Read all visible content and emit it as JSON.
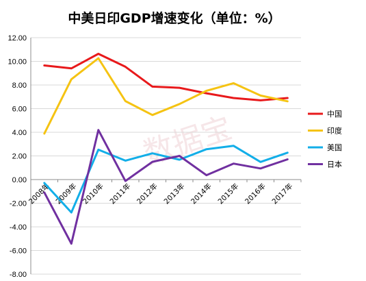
{
  "chart_data": {
    "type": "line",
    "title": "中美日印GDP增速变化（单位：%）",
    "watermark": "数据宝",
    "categories": [
      "2008年",
      "2009年",
      "2010年",
      "2011年",
      "2012年",
      "2013年",
      "2014年",
      "2015年",
      "2016年",
      "2017年"
    ],
    "y_tick_labels": [
      "12.00",
      "10.00",
      "8.00",
      "6.00",
      "4.00",
      "2.00",
      "0.00",
      "-2.00",
      "-4.00",
      "-6.00",
      "-8.00"
    ],
    "ylim": [
      -8,
      12
    ],
    "y_step": 2,
    "grid": true,
    "legend_position": "right",
    "series": [
      {
        "name": "中国",
        "color": "#e8191b",
        "values": [
          9.65,
          9.4,
          10.64,
          9.54,
          7.86,
          7.76,
          7.3,
          6.9,
          6.7,
          6.9
        ]
      },
      {
        "name": "印度",
        "color": "#f5c312",
        "values": [
          3.89,
          8.48,
          10.26,
          6.64,
          5.46,
          6.39,
          7.51,
          8.15,
          7.11,
          6.62
        ]
      },
      {
        "name": "美国",
        "color": "#12aee8",
        "values": [
          -0.29,
          -2.78,
          2.53,
          1.6,
          2.22,
          1.68,
          2.57,
          2.86,
          1.49,
          2.27
        ]
      },
      {
        "name": "日本",
        "color": "#7030a0",
        "values": [
          -1.09,
          -5.42,
          4.19,
          -0.12,
          1.5,
          2.0,
          0.37,
          1.35,
          0.94,
          1.71
        ]
      }
    ]
  }
}
